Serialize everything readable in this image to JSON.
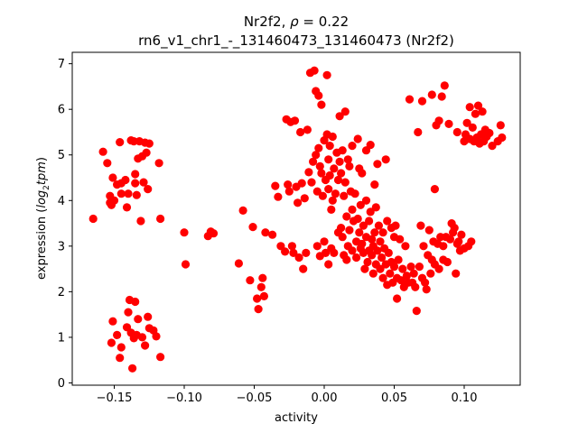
{
  "chart_data": {
    "type": "scatter",
    "title_gene": "Nr2f2",
    "title_rho_prefix": ", ",
    "title_rho_symbol": "ρ",
    "title_rho_value": " = 0.22",
    "subtitle": "rn6_v1_chr1_-_131460473_131460473 (Nr2f2)",
    "xlabel": "activity",
    "ylabel_prefix": "expression (",
    "ylabel_math": "log",
    "ylabel_sub": "2",
    "ylabel_math2": "tpm",
    "ylabel_suffix": ")",
    "xlim": [
      -0.18,
      0.14
    ],
    "ylim": [
      -0.05,
      7.25
    ],
    "xticks": [
      -0.15,
      -0.1,
      -0.05,
      0.0,
      0.05,
      0.1
    ],
    "xtick_labels": [
      "−0.15",
      "−0.10",
      "−0.05",
      "0.00",
      "0.05",
      "0.10"
    ],
    "yticks": [
      0,
      1,
      2,
      3,
      4,
      5,
      6,
      7
    ],
    "ytick_labels": [
      "0",
      "1",
      "2",
      "3",
      "4",
      "5",
      "6",
      "7"
    ],
    "grid": false,
    "marker_color": "#ff0000",
    "points": [
      [
        -0.165,
        3.6
      ],
      [
        -0.158,
        5.07
      ],
      [
        -0.155,
        4.82
      ],
      [
        -0.153,
        4.1
      ],
      [
        -0.153,
        3.95
      ],
      [
        -0.152,
        3.9
      ],
      [
        -0.15,
        4.0
      ],
      [
        -0.151,
        4.5
      ],
      [
        -0.148,
        4.35
      ],
      [
        -0.146,
        5.28
      ],
      [
        -0.145,
        4.38
      ],
      [
        -0.145,
        4.15
      ],
      [
        -0.142,
        4.45
      ],
      [
        -0.141,
        3.85
      ],
      [
        -0.14,
        4.15
      ],
      [
        -0.138,
        5.32
      ],
      [
        -0.136,
        5.3
      ],
      [
        -0.135,
        4.58
      ],
      [
        -0.135,
        4.38
      ],
      [
        -0.134,
        4.12
      ],
      [
        -0.133,
        4.92
      ],
      [
        -0.132,
        5.3
      ],
      [
        -0.131,
        3.55
      ],
      [
        -0.13,
        4.97
      ],
      [
        -0.129,
        4.4
      ],
      [
        -0.128,
        5.27
      ],
      [
        -0.127,
        5.05
      ],
      [
        -0.126,
        4.25
      ],
      [
        -0.125,
        5.25
      ],
      [
        -0.118,
        4.82
      ],
      [
        -0.117,
        3.6
      ],
      [
        -0.152,
        0.88
      ],
      [
        -0.151,
        1.35
      ],
      [
        -0.148,
        1.05
      ],
      [
        -0.146,
        0.55
      ],
      [
        -0.145,
        0.78
      ],
      [
        -0.141,
        1.22
      ],
      [
        -0.14,
        1.55
      ],
      [
        -0.139,
        1.82
      ],
      [
        -0.138,
        1.1
      ],
      [
        -0.137,
        0.32
      ],
      [
        -0.136,
        0.98
      ],
      [
        -0.135,
        1.78
      ],
      [
        -0.134,
        1.05
      ],
      [
        -0.133,
        1.4
      ],
      [
        -0.13,
        1.0
      ],
      [
        -0.128,
        0.82
      ],
      [
        -0.126,
        1.45
      ],
      [
        -0.125,
        1.2
      ],
      [
        -0.122,
        1.15
      ],
      [
        -0.12,
        1.02
      ],
      [
        -0.117,
        0.57
      ],
      [
        -0.1,
        3.3
      ],
      [
        -0.099,
        2.6
      ],
      [
        -0.083,
        3.22
      ],
      [
        -0.081,
        3.32
      ],
      [
        -0.079,
        3.28
      ],
      [
        -0.061,
        2.62
      ],
      [
        -0.058,
        3.78
      ],
      [
        -0.053,
        2.25
      ],
      [
        -0.051,
        3.42
      ],
      [
        -0.048,
        1.85
      ],
      [
        -0.047,
        1.62
      ],
      [
        -0.045,
        2.1
      ],
      [
        -0.044,
        2.3
      ],
      [
        -0.043,
        1.9
      ],
      [
        -0.042,
        3.3
      ],
      [
        -0.037,
        3.25
      ],
      [
        -0.035,
        4.32
      ],
      [
        -0.033,
        4.08
      ],
      [
        -0.031,
        3.0
      ],
      [
        -0.028,
        2.88
      ],
      [
        -0.027,
        5.78
      ],
      [
        -0.026,
        4.35
      ],
      [
        -0.025,
        4.2
      ],
      [
        -0.024,
        5.72
      ],
      [
        -0.023,
        3.0
      ],
      [
        -0.022,
        2.85
      ],
      [
        -0.021,
        5.75
      ],
      [
        -0.02,
        4.3
      ],
      [
        -0.019,
        3.95
      ],
      [
        -0.018,
        2.75
      ],
      [
        -0.017,
        5.5
      ],
      [
        -0.016,
        4.38
      ],
      [
        -0.015,
        2.5
      ],
      [
        -0.014,
        4.05
      ],
      [
        -0.013,
        2.85
      ],
      [
        -0.012,
        5.55
      ],
      [
        -0.011,
        4.62
      ],
      [
        -0.01,
        6.8
      ],
      [
        -0.009,
        4.4
      ],
      [
        -0.008,
        4.85
      ],
      [
        -0.007,
        6.85
      ],
      [
        -0.006,
        6.4
      ],
      [
        -0.006,
        5.0
      ],
      [
        -0.005,
        4.2
      ],
      [
        -0.005,
        3.0
      ],
      [
        -0.004,
        6.3
      ],
      [
        -0.004,
        5.15
      ],
      [
        -0.003,
        2.78
      ],
      [
        -0.003,
        4.75
      ],
      [
        -0.002,
        6.1
      ],
      [
        -0.002,
        4.6
      ],
      [
        -0.001,
        4.1
      ],
      [
        0.0,
        5.32
      ],
      [
        0.0,
        3.1
      ],
      [
        0.001,
        4.45
      ],
      [
        0.001,
        2.85
      ],
      [
        0.002,
        6.75
      ],
      [
        0.002,
        5.45
      ],
      [
        0.003,
        4.9
      ],
      [
        0.003,
        4.25
      ],
      [
        0.003,
        2.6
      ],
      [
        0.004,
        5.2
      ],
      [
        0.004,
        4.55
      ],
      [
        0.005,
        3.8
      ],
      [
        0.005,
        2.95
      ],
      [
        0.006,
        5.4
      ],
      [
        0.006,
        4.0
      ],
      [
        0.007,
        4.7
      ],
      [
        0.007,
        2.85
      ],
      [
        0.008,
        4.15
      ],
      [
        0.009,
        5.05
      ],
      [
        0.01,
        4.45
      ],
      [
        0.01,
        3.3
      ],
      [
        0.011,
        5.85
      ],
      [
        0.011,
        4.85
      ],
      [
        0.012,
        4.6
      ],
      [
        0.012,
        3.4
      ],
      [
        0.013,
        5.1
      ],
      [
        0.013,
        3.2
      ],
      [
        0.014,
        4.1
      ],
      [
        0.014,
        2.8
      ],
      [
        0.015,
        5.95
      ],
      [
        0.015,
        4.4
      ],
      [
        0.016,
        3.65
      ],
      [
        0.016,
        2.7
      ],
      [
        0.017,
        4.9
      ],
      [
        0.017,
        3.0
      ],
      [
        0.018,
        4.75
      ],
      [
        0.018,
        3.35
      ],
      [
        0.019,
        4.2
      ],
      [
        0.02,
        5.2
      ],
      [
        0.02,
        3.8
      ],
      [
        0.02,
        2.9
      ],
      [
        0.021,
        3.55
      ],
      [
        0.022,
        4.15
      ],
      [
        0.023,
        2.75
      ],
      [
        0.023,
        3.1
      ],
      [
        0.024,
        5.35
      ],
      [
        0.024,
        3.6
      ],
      [
        0.025,
        4.7
      ],
      [
        0.025,
        3.3
      ],
      [
        0.026,
        2.95
      ],
      [
        0.026,
        3.9
      ],
      [
        0.027,
        4.6
      ],
      [
        0.027,
        3.05
      ],
      [
        0.028,
        3.45
      ],
      [
        0.028,
        2.85
      ],
      [
        0.029,
        2.5
      ],
      [
        0.03,
        5.1
      ],
      [
        0.03,
        3.2
      ],
      [
        0.03,
        4.0
      ],
      [
        0.031,
        2.65
      ],
      [
        0.032,
        3.55
      ],
      [
        0.032,
        2.9
      ],
      [
        0.033,
        3.75
      ],
      [
        0.033,
        5.22
      ],
      [
        0.034,
        2.8
      ],
      [
        0.034,
        3.15
      ],
      [
        0.035,
        2.4
      ],
      [
        0.035,
        3.0
      ],
      [
        0.036,
        4.35
      ],
      [
        0.036,
        3.3
      ],
      [
        0.037,
        2.6
      ],
      [
        0.037,
        3.85
      ],
      [
        0.038,
        2.9
      ],
      [
        0.038,
        4.8
      ],
      [
        0.039,
        3.45
      ],
      [
        0.04,
        2.5
      ],
      [
        0.04,
        3.1
      ],
      [
        0.041,
        2.75
      ],
      [
        0.042,
        3.3
      ],
      [
        0.042,
        2.3
      ],
      [
        0.043,
        2.95
      ],
      [
        0.044,
        4.9
      ],
      [
        0.044,
        2.6
      ],
      [
        0.045,
        3.55
      ],
      [
        0.045,
        2.15
      ],
      [
        0.046,
        2.85
      ],
      [
        0.047,
        2.4
      ],
      [
        0.048,
        3.4
      ],
      [
        0.048,
        2.65
      ],
      [
        0.049,
        2.2
      ],
      [
        0.05,
        3.2
      ],
      [
        0.05,
        2.55
      ],
      [
        0.051,
        3.45
      ],
      [
        0.052,
        2.3
      ],
      [
        0.052,
        1.85
      ],
      [
        0.053,
        2.7
      ],
      [
        0.054,
        3.15
      ],
      [
        0.055,
        2.25
      ],
      [
        0.056,
        2.5
      ],
      [
        0.057,
        2.1
      ],
      [
        0.058,
        3.0
      ],
      [
        0.059,
        2.35
      ],
      [
        0.06,
        2.2
      ],
      [
        0.061,
        6.22
      ],
      [
        0.062,
        2.55
      ],
      [
        0.063,
        2.2
      ],
      [
        0.064,
        2.4
      ],
      [
        0.065,
        2.1
      ],
      [
        0.066,
        1.58
      ],
      [
        0.067,
        5.5
      ],
      [
        0.068,
        2.55
      ],
      [
        0.069,
        3.45
      ],
      [
        0.07,
        6.18
      ],
      [
        0.07,
        2.3
      ],
      [
        0.071,
        3.0
      ],
      [
        0.072,
        2.2
      ],
      [
        0.073,
        2.05
      ],
      [
        0.074,
        2.8
      ],
      [
        0.075,
        3.35
      ],
      [
        0.076,
        2.4
      ],
      [
        0.077,
        6.32
      ],
      [
        0.077,
        2.7
      ],
      [
        0.078,
        3.1
      ],
      [
        0.079,
        4.25
      ],
      [
        0.079,
        2.6
      ],
      [
        0.08,
        5.65
      ],
      [
        0.081,
        3.05
      ],
      [
        0.082,
        5.75
      ],
      [
        0.082,
        2.5
      ],
      [
        0.083,
        3.2
      ],
      [
        0.084,
        6.28
      ],
      [
        0.085,
        2.7
      ],
      [
        0.085,
        3.0
      ],
      [
        0.086,
        6.52
      ],
      [
        0.087,
        3.2
      ],
      [
        0.088,
        2.65
      ],
      [
        0.089,
        5.68
      ],
      [
        0.09,
        3.15
      ],
      [
        0.091,
        3.5
      ],
      [
        0.092,
        3.3
      ],
      [
        0.093,
        3.4
      ],
      [
        0.094,
        2.4
      ],
      [
        0.095,
        3.05
      ],
      [
        0.095,
        5.5
      ],
      [
        0.096,
        3.1
      ],
      [
        0.097,
        2.9
      ],
      [
        0.098,
        3.25
      ],
      [
        0.1,
        2.95
      ],
      [
        0.1,
        5.3
      ],
      [
        0.101,
        5.45
      ],
      [
        0.102,
        5.7
      ],
      [
        0.103,
        3.0
      ],
      [
        0.104,
        6.05
      ],
      [
        0.104,
        5.35
      ],
      [
        0.105,
        3.1
      ],
      [
        0.106,
        5.6
      ],
      [
        0.107,
        5.3
      ],
      [
        0.108,
        5.9
      ],
      [
        0.109,
        5.38
      ],
      [
        0.11,
        6.08
      ],
      [
        0.111,
        5.25
      ],
      [
        0.112,
        5.45
      ],
      [
        0.113,
        5.95
      ],
      [
        0.114,
        5.3
      ],
      [
        0.115,
        5.55
      ],
      [
        0.116,
        5.4
      ],
      [
        0.118,
        5.48
      ],
      [
        0.12,
        5.2
      ],
      [
        0.124,
        5.3
      ],
      [
        0.126,
        5.65
      ],
      [
        0.127,
        5.38
      ]
    ]
  }
}
